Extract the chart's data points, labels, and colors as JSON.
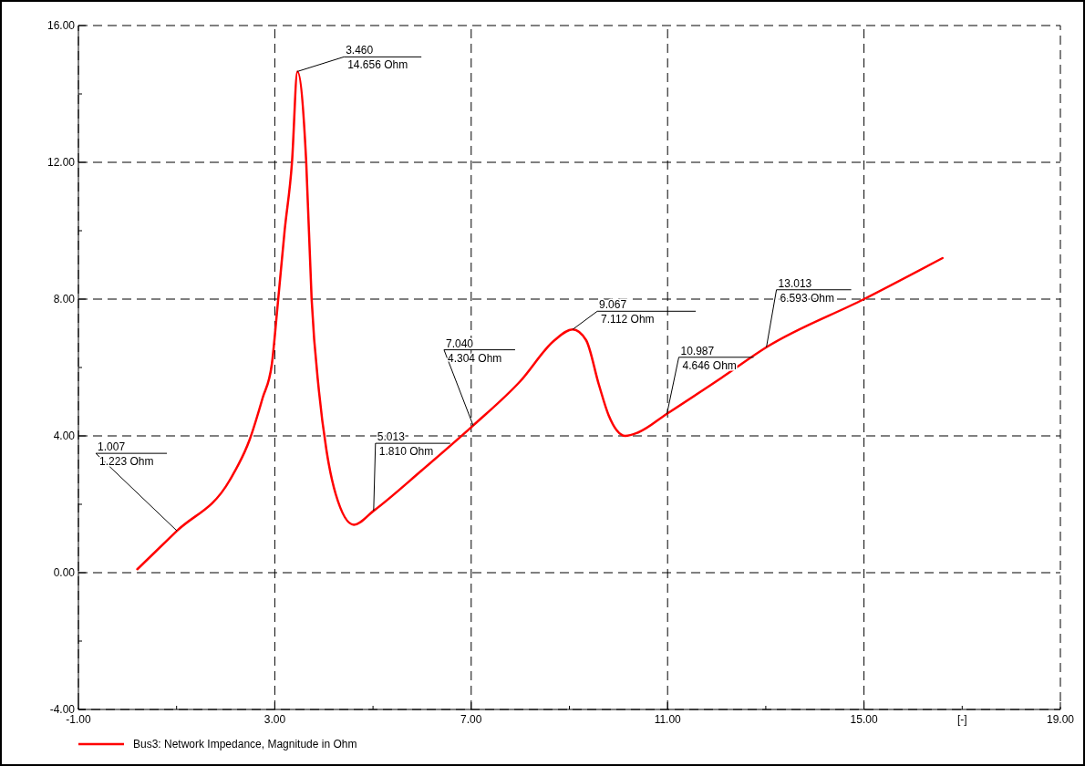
{
  "chart_data": {
    "type": "line",
    "xlabel": "[-]",
    "x": [
      0.2,
      1.007,
      2.08,
      2.49,
      2.75,
      2.94,
      3.05,
      3.2,
      3.35,
      3.46,
      3.64,
      3.75,
      3.9,
      4.05,
      4.24,
      4.61,
      5.013,
      6.0,
      7.04,
      8.0,
      8.7,
      9.067,
      9.34,
      9.6,
      9.8,
      10.14,
      10.4,
      10.987,
      12.1,
      13.013,
      15.0,
      16.6
    ],
    "series": [
      {
        "name": "Bus3: Network Impedance, Magnitude in Ohm",
        "color": "#ff0000",
        "values": [
          0.1,
          1.223,
          2.7,
          3.9,
          5.1,
          6.1,
          7.7,
          10.0,
          12.0,
          14.656,
          12.0,
          8.0,
          5.3,
          3.6,
          2.3,
          1.4,
          1.81,
          3.0,
          4.304,
          5.6,
          6.8,
          7.112,
          6.8,
          5.5,
          4.6,
          4.0,
          4.1,
          4.646,
          5.7,
          6.593,
          8.0,
          9.2
        ]
      }
    ],
    "xlim": [
      -1,
      19
    ],
    "xticks": [
      {
        "value": -1,
        "label": "-1.00"
      },
      {
        "value": 1,
        "label": null
      },
      {
        "value": 3,
        "label": "3.00"
      },
      {
        "value": 5,
        "label": null
      },
      {
        "value": 7,
        "label": "7.00"
      },
      {
        "value": 9,
        "label": null
      },
      {
        "value": 11,
        "label": "11.00"
      },
      {
        "value": 13,
        "label": null
      },
      {
        "value": 15,
        "label": "15.00"
      },
      {
        "value": 17,
        "label": null
      },
      {
        "value": 19,
        "label": "19.00"
      }
    ],
    "ylim": [
      -4,
      16
    ],
    "yticks": [
      {
        "value": -4,
        "label": "-4.00"
      },
      {
        "value": -2,
        "label": null
      },
      {
        "value": 0,
        "label": "0.00"
      },
      {
        "value": 2,
        "label": null
      },
      {
        "value": 4,
        "label": "4.00"
      },
      {
        "value": 6,
        "label": null
      },
      {
        "value": 8,
        "label": "8.00"
      },
      {
        "value": 10,
        "label": null
      },
      {
        "value": 12,
        "label": "12.00"
      },
      {
        "value": 14,
        "label": null
      },
      {
        "value": 16,
        "label": "16.00"
      }
    ],
    "grid": true,
    "legend": "bottom left",
    "line_style": "solid",
    "marker": "none",
    "annotations": [
      {
        "text": "1.007\n1.223 Ohm",
        "x": 1.007,
        "y": 1.223
      },
      {
        "text": "3.460\n14.656 Ohm",
        "x": 3.46,
        "y": 14.656
      },
      {
        "text": "5.013\n1.810 Ohm",
        "x": 5.013,
        "y": 1.81
      },
      {
        "text": "7.040\n4.304 Ohm",
        "x": 7.04,
        "y": 4.304
      },
      {
        "text": "9.067\n7.112 Ohm",
        "x": 9.067,
        "y": 7.112
      },
      {
        "text": "10.987\n4.646 Ohm",
        "x": 10.987,
        "y": 4.646
      },
      {
        "text": "13.013\n6.593 Ohm",
        "x": 13.013,
        "y": 6.593
      }
    ]
  }
}
